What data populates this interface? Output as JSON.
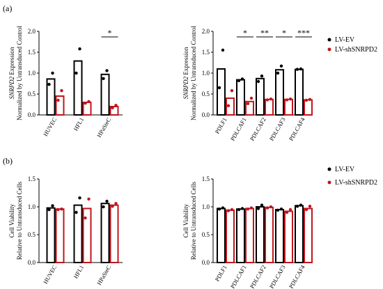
{
  "figure": {
    "panel_letters": [
      "(a)",
      "(b)"
    ],
    "legend": [
      {
        "label": "LV-EV",
        "color": "#000000"
      },
      {
        "label": "LV-shSNRPD2",
        "color": "#c0161c"
      }
    ]
  },
  "chart_data": [
    {
      "id": "a-left",
      "type": "bar",
      "panel": "(a)",
      "ylabel_gene": "SNRPD2",
      "ylabel_rest": " Expression",
      "ylabel_line2": "Normalized by Untransduced Control",
      "ylim": [
        0,
        2.0
      ],
      "yticks": [
        "0.0",
        "0.5",
        "1.0",
        "1.5",
        "2.0"
      ],
      "categories": [
        "HUVEC",
        "HFL1",
        "HPaSteC"
      ],
      "series": [
        {
          "name": "LV-EV",
          "color": "#000000",
          "values": [
            0.86,
            1.29,
            0.97
          ],
          "points": [
            [
              0.73,
              1.0
            ],
            [
              1.0,
              1.58
            ],
            [
              0.87,
              1.06
            ]
          ]
        },
        {
          "name": "LV-shSNRPD2",
          "color": "#c0161c",
          "values": [
            0.45,
            0.3,
            0.2
          ],
          "points": [
            [
              0.35,
              0.58
            ],
            [
              0.28,
              0.32
            ],
            [
              0.17,
              0.23
            ]
          ]
        }
      ],
      "significance": [
        {
          "category_index": 2,
          "label": "*"
        }
      ]
    },
    {
      "id": "a-right",
      "type": "bar",
      "panel": "(a)",
      "ylabel_gene": "SNRPD2",
      "ylabel_rest": " Expression",
      "ylabel_line2": "Normalized by Untransduced Control",
      "ylim": [
        0,
        2.0
      ],
      "yticks": [
        "0.0",
        "0.5",
        "1.0",
        "1.5",
        "2.0"
      ],
      "categories": [
        "PDLF1",
        "PDLCAF1",
        "PDLCAF2",
        "PDLCAF3",
        "PDLCAF4"
      ],
      "series": [
        {
          "name": "LV-EV",
          "color": "#000000",
          "values": [
            1.1,
            0.84,
            0.87,
            1.08,
            1.09
          ],
          "points": [
            [
              0.65,
              1.55
            ],
            [
              0.82,
              0.86
            ],
            [
              0.8,
              0.93
            ],
            [
              1.0,
              1.17
            ],
            [
              1.09,
              1.1
            ]
          ]
        },
        {
          "name": "LV-shSNRPD2",
          "color": "#c0161c",
          "values": [
            0.4,
            0.32,
            0.37,
            0.37,
            0.36
          ],
          "points": [
            [
              0.22,
              0.58
            ],
            [
              0.27,
              0.4
            ],
            [
              0.36,
              0.38
            ],
            [
              0.36,
              0.38
            ],
            [
              0.35,
              0.37
            ]
          ]
        }
      ],
      "significance": [
        {
          "category_index": 1,
          "label": "*"
        },
        {
          "category_index": 2,
          "label": "**"
        },
        {
          "category_index": 3,
          "label": "*"
        },
        {
          "category_index": 4,
          "label": "***"
        }
      ]
    },
    {
      "id": "b-left",
      "type": "bar",
      "panel": "(b)",
      "ylabel_gene": "",
      "ylabel_rest": "Cell Viability",
      "ylabel_line2": "Relative to Untransduced Cells",
      "ylim": [
        0,
        1.5
      ],
      "yticks": [
        "0.0",
        "0.5",
        "1.0",
        "1.5"
      ],
      "categories": [
        "HUVEC",
        "HFL1",
        "HPaSteC"
      ],
      "series": [
        {
          "name": "LV-EV",
          "color": "#000000",
          "values": [
            0.98,
            1.03,
            1.06
          ],
          "points": [
            [
              0.95,
              1.02
            ],
            [
              0.9,
              1.16
            ],
            [
              1.0,
              1.1
            ]
          ]
        },
        {
          "name": "LV-shSNRPD2",
          "color": "#c0161c",
          "values": [
            0.96,
            0.97,
            1.03
          ],
          "points": [
            [
              0.95,
              0.96
            ],
            [
              0.8,
              1.14
            ],
            [
              1.01,
              1.06
            ]
          ]
        }
      ],
      "significance": []
    },
    {
      "id": "b-right",
      "type": "bar",
      "panel": "(b)",
      "ylabel_gene": "",
      "ylabel_rest": "Cell Viability",
      "ylabel_line2": "Relative to Untransduced Cells",
      "ylim": [
        0,
        1.5
      ],
      "yticks": [
        "0.0",
        "0.5",
        "1.0",
        "1.5"
      ],
      "categories": [
        "PDLF1",
        "PDLCAF1",
        "PDLCAF2",
        "PDLCAF3",
        "PDLCAF4"
      ],
      "series": [
        {
          "name": "LV-EV",
          "color": "#000000",
          "values": [
            0.97,
            0.96,
            1.0,
            0.95,
            1.02
          ],
          "points": [
            [
              0.96,
              0.98
            ],
            [
              0.95,
              0.97
            ],
            [
              0.97,
              1.03
            ],
            [
              0.94,
              0.96
            ],
            [
              1.01,
              1.03
            ]
          ]
        },
        {
          "name": "LV-shSNRPD2",
          "color": "#c0161c",
          "values": [
            0.94,
            0.97,
            0.99,
            0.92,
            0.97
          ],
          "points": [
            [
              0.93,
              0.95
            ],
            [
              0.96,
              0.98
            ],
            [
              0.98,
              1.0
            ],
            [
              0.9,
              0.95
            ],
            [
              0.95,
              1.01
            ]
          ]
        }
      ],
      "significance": []
    }
  ]
}
